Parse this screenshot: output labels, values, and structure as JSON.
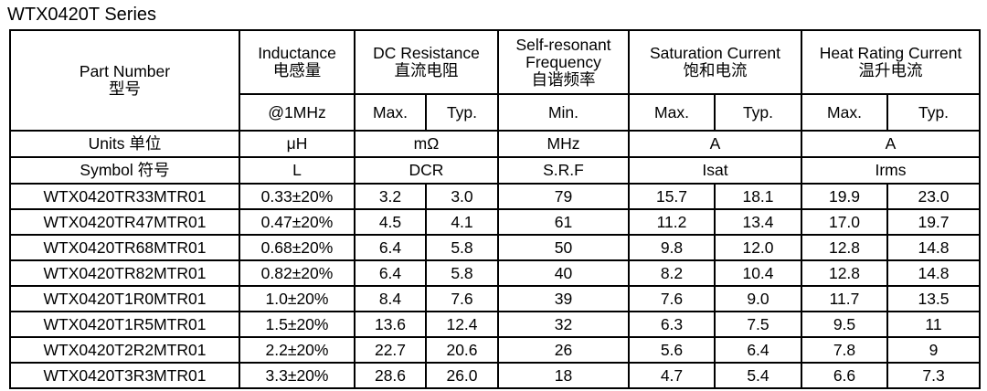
{
  "title": "WTX0420T Series",
  "headers": {
    "part_number": {
      "en": "Part Number",
      "cn": "型号"
    },
    "inductance": {
      "en": "Inductance",
      "cn": "电感量"
    },
    "dc_resistance": {
      "en": "DC Resistance",
      "cn": "直流电阻"
    },
    "srf": {
      "en1": "Self-resonant",
      "en2": "Frequency",
      "cn": "自谐频率"
    },
    "saturation_current": {
      "en": "Saturation Current",
      "cn": "饱和电流"
    },
    "heat_rating_current": {
      "en": "Heat Rating Current",
      "cn": "温升电流"
    }
  },
  "conditions": {
    "inductance": "@1MHz",
    "dcr_max": "Max.",
    "dcr_typ": "Typ.",
    "srf_min": "Min.",
    "isat_max": "Max.",
    "isat_typ": "Typ.",
    "irms_max": "Max.",
    "irms_typ": "Typ."
  },
  "units": {
    "label": "Units 单位",
    "inductance": "μH",
    "dcr": "mΩ",
    "srf": "MHz",
    "isat": "A",
    "irms": "A"
  },
  "symbols": {
    "label": "Symbol 符号",
    "inductance": "L",
    "dcr": "DCR",
    "srf": "S.R.F",
    "isat": "Isat",
    "irms": "Irms"
  },
  "rows": [
    {
      "part": "WTX0420TR33MTR01",
      "l": "0.33±20%",
      "dcr_max": "3.2",
      "dcr_typ": "3.0",
      "srf": "79",
      "isat_max": "15.7",
      "isat_typ": "18.1",
      "irms_max": "19.9",
      "irms_typ": "23.0"
    },
    {
      "part": "WTX0420TR47MTR01",
      "l": "0.47±20%",
      "dcr_max": "4.5",
      "dcr_typ": "4.1",
      "srf": "61",
      "isat_max": "11.2",
      "isat_typ": "13.4",
      "irms_max": "17.0",
      "irms_typ": "19.7"
    },
    {
      "part": "WTX0420TR68MTR01",
      "l": "0.68±20%",
      "dcr_max": "6.4",
      "dcr_typ": "5.8",
      "srf": "50",
      "isat_max": "9.8",
      "isat_typ": "12.0",
      "irms_max": "12.8",
      "irms_typ": "14.8"
    },
    {
      "part": "WTX0420TR82MTR01",
      "l": "0.82±20%",
      "dcr_max": "6.4",
      "dcr_typ": "5.8",
      "srf": "40",
      "isat_max": "8.2",
      "isat_typ": "10.4",
      "irms_max": "12.8",
      "irms_typ": "14.8"
    },
    {
      "part": "WTX0420T1R0MTR01",
      "l": "1.0±20%",
      "dcr_max": "8.4",
      "dcr_typ": "7.6",
      "srf": "39",
      "isat_max": "7.6",
      "isat_typ": "9.0",
      "irms_max": "11.7",
      "irms_typ": "13.5"
    },
    {
      "part": "WTX0420T1R5MTR01",
      "l": "1.5±20%",
      "dcr_max": "13.6",
      "dcr_typ": "12.4",
      "srf": "32",
      "isat_max": "6.3",
      "isat_typ": "7.5",
      "irms_max": "9.5",
      "irms_typ": "11"
    },
    {
      "part": "WTX0420T2R2MTR01",
      "l": "2.2±20%",
      "dcr_max": "22.7",
      "dcr_typ": "20.6",
      "srf": "26",
      "isat_max": "5.6",
      "isat_typ": "6.4",
      "irms_max": "7.8",
      "irms_typ": "9"
    },
    {
      "part": "WTX0420T3R3MTR01",
      "l": "3.3±20%",
      "dcr_max": "28.6",
      "dcr_typ": "26.0",
      "srf": "18",
      "isat_max": "4.7",
      "isat_typ": "5.4",
      "irms_max": "6.6",
      "irms_typ": "7.3"
    }
  ]
}
